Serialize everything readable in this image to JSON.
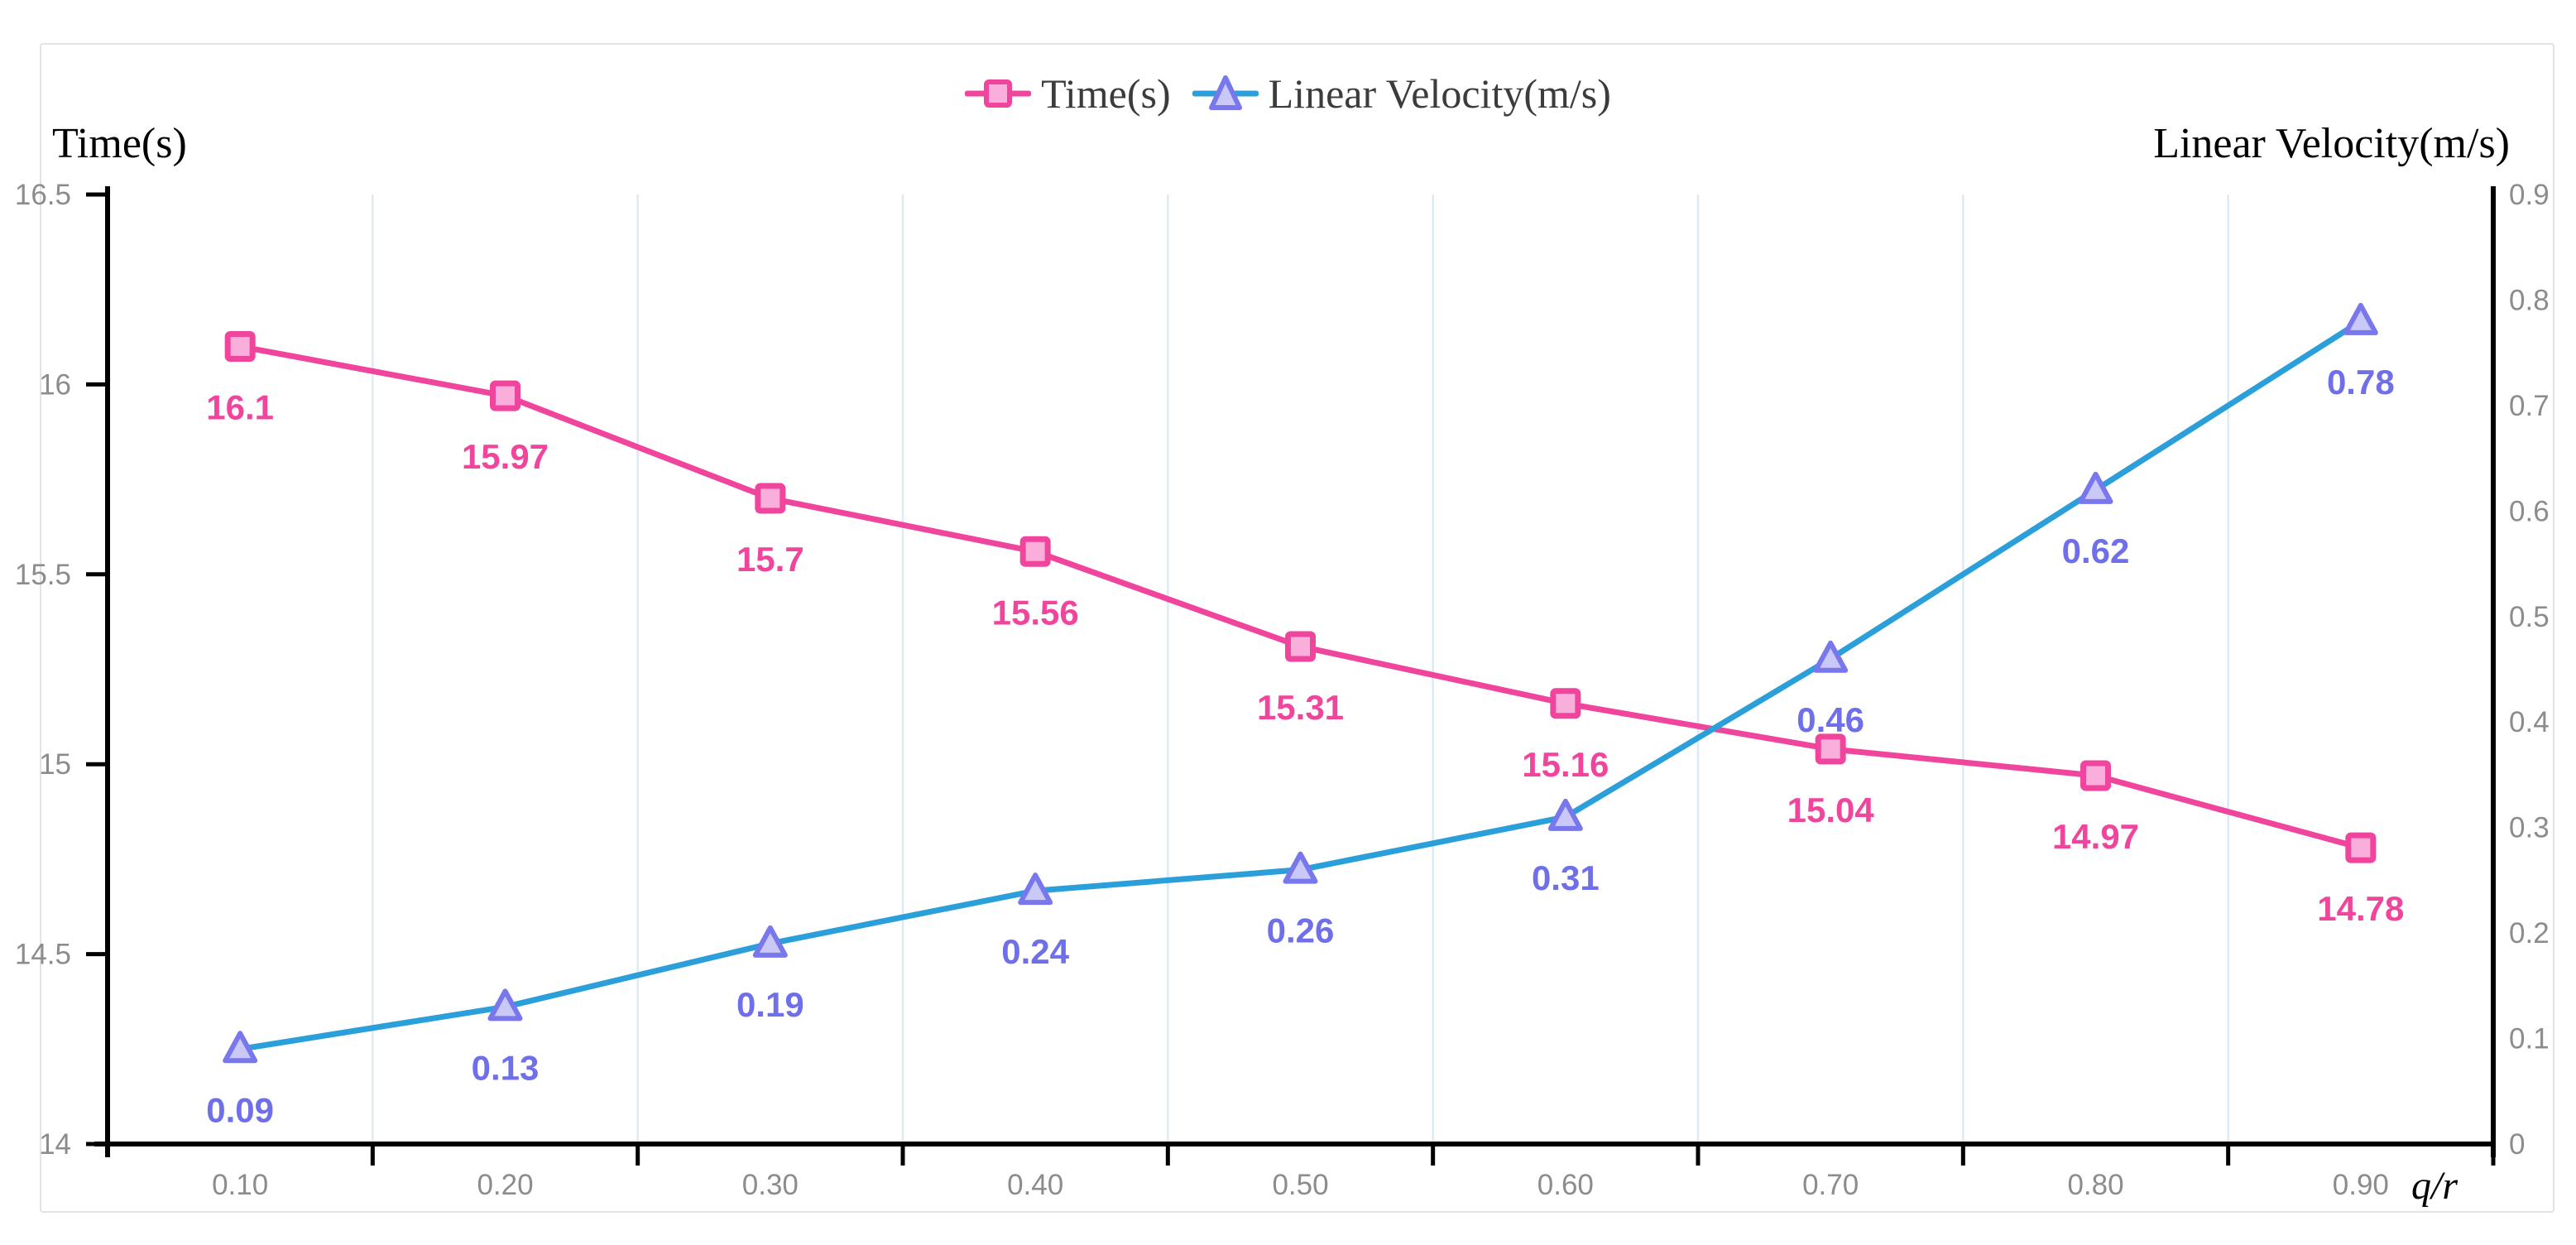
{
  "legend": {
    "items": [
      {
        "label": "Time(s)",
        "marker": "square"
      },
      {
        "label": "Linear Velocity(m/s)",
        "marker": "triangle"
      }
    ]
  },
  "chart_data": {
    "type": "line",
    "categories": [
      "0.10",
      "0.20",
      "0.30",
      "0.40",
      "0.50",
      "0.60",
      "0.70",
      "0.80",
      "0.90"
    ],
    "x_axis": {
      "title": "q/r",
      "tick_labels": [
        "0.10",
        "0.20",
        "0.30",
        "0.40",
        "0.50",
        "0.60",
        "0.70",
        "0.80",
        "0.90"
      ]
    },
    "left_axis": {
      "title": "Time(s)",
      "min": 14,
      "max": 16.5,
      "ticks": [
        16.5,
        16,
        15.5,
        15,
        14.5,
        14
      ],
      "tick_labels": [
        "16.5",
        "16",
        "15.5",
        "15",
        "14.5",
        "14"
      ]
    },
    "right_axis": {
      "title": "Linear Velocity(m/s)",
      "min": 0,
      "max": 0.9,
      "ticks": [
        0.9,
        0.8,
        0.7,
        0.6,
        0.5,
        0.4,
        0.3,
        0.2,
        0.1,
        0
      ],
      "tick_labels": [
        "0.9",
        "0.8",
        "0.7",
        "0.6",
        "0.5",
        "0.4",
        "0.3",
        "0.2",
        "0.1",
        "0"
      ]
    },
    "grid": {
      "vertical": true,
      "horizontal": false,
      "color": "#daeaf6"
    },
    "legend_position": "top-center",
    "series": [
      {
        "name": "Time(s)",
        "axis": "left",
        "marker": "square",
        "line_color": "#f0459c",
        "marker_border": "#f0459c",
        "marker_fill": "#f9aedb",
        "label_color": "#f0459c",
        "values": [
          16.1,
          15.97,
          15.7,
          15.56,
          15.31,
          15.16,
          15.04,
          14.97,
          14.78
        ],
        "value_labels": [
          "16.1",
          "15.97",
          "15.7",
          "15.56",
          "15.31",
          "15.16",
          "15.04",
          "14.97",
          "14.78"
        ]
      },
      {
        "name": "Linear Velocity(m/s)",
        "axis": "right",
        "marker": "triangle",
        "line_color": "#2b9fd9",
        "marker_border": "#7877ec",
        "marker_fill": "#c9c8f6",
        "label_color": "#6e6fe9",
        "values": [
          0.09,
          0.13,
          0.19,
          0.24,
          0.26,
          0.31,
          0.46,
          0.62,
          0.78
        ],
        "value_labels": [
          "0.09",
          "0.13",
          "0.19",
          "0.24",
          "0.26",
          "0.31",
          "0.46",
          "0.62",
          "0.78"
        ]
      }
    ],
    "colors": {
      "axis_line": "#000000",
      "tick_text": "#8c8c8c",
      "title_text": "#000000",
      "legend_text": "#3c3c3c"
    }
  }
}
